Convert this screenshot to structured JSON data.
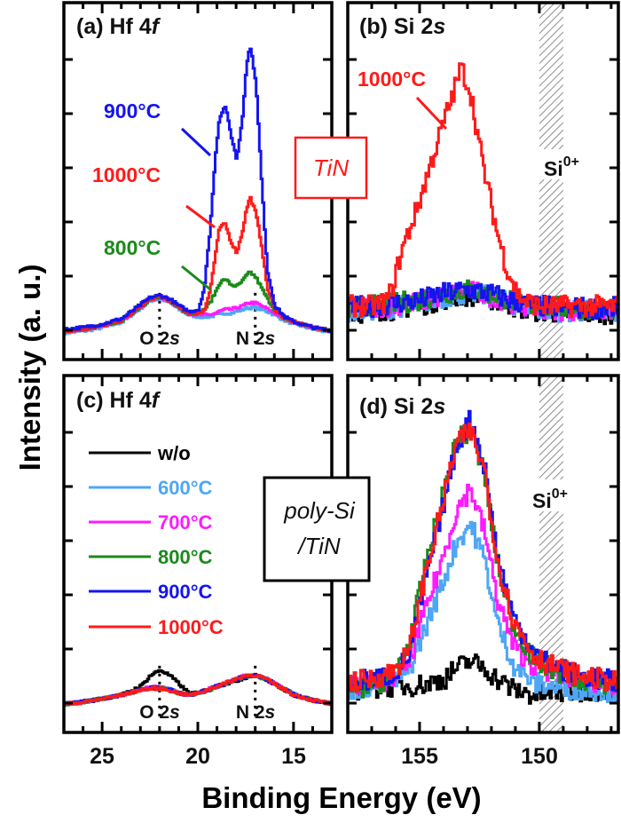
{
  "colors": {
    "w/o": "#000000",
    "600": "#4ea6f5",
    "700": "#ff1aff",
    "800": "#1a8a1a",
    "900": "#1414f0",
    "1000": "#ff1a1a",
    "hatch": "#8c8c8c"
  },
  "chart_data": {
    "type": "line",
    "xlabel": "Binding Energy (eV)",
    "ylabel": "Intensity (a. u.)",
    "legend": {
      "placement": "panel (c) upper-left",
      "entries": [
        {
          "label": "w/o",
          "color": "#000000"
        },
        {
          "label": "600°C",
          "color": "#4ea6f5"
        },
        {
          "label": "700°C",
          "color": "#ff1aff"
        },
        {
          "label": "800°C",
          "color": "#1a8a1a"
        },
        {
          "label": "900°C",
          "color": "#1414f0"
        },
        {
          "label": "1000°C",
          "color": "#ff1a1a"
        }
      ]
    },
    "panels": [
      {
        "id": "a",
        "label_prefix": "(a) Hf 4",
        "label_italic": "f",
        "xlim": [
          27,
          13
        ],
        "xticks": [
          25,
          20,
          15
        ],
        "ylim": [
          0,
          10
        ],
        "x_reversed": true,
        "peak_labels": [
          {
            "prefix": "O 2",
            "italic": "s",
            "x": 22
          },
          {
            "prefix": "N 2",
            "italic": "s",
            "x": 17
          }
        ],
        "annotations": [
          {
            "text": "900°C",
            "color": "#1414f0"
          },
          {
            "text": "1000°C",
            "color": "#ff1a1a"
          },
          {
            "text": "800°C",
            "color": "#1a8a1a"
          }
        ],
        "sample_label": "TiN",
        "x": [
          27,
          26,
          25,
          24,
          23.5,
          23,
          22.5,
          22,
          21.5,
          21,
          20.5,
          20,
          19.7,
          19.4,
          19.1,
          18.9,
          18.6,
          18.3,
          18,
          17.7,
          17.5,
          17.3,
          17,
          16.7,
          16.4,
          16,
          15.5,
          15,
          14,
          13
        ],
        "series": [
          {
            "name": "600°C",
            "color": "#4ea6f5",
            "y": [
              0.75,
              0.8,
              0.9,
              1.05,
              1.25,
              1.45,
              1.65,
              1.7,
              1.6,
              1.4,
              1.25,
              1.2,
              1.2,
              1.2,
              1.25,
              1.25,
              1.3,
              1.3,
              1.35,
              1.4,
              1.45,
              1.45,
              1.45,
              1.4,
              1.35,
              1.25,
              1.1,
              1.0,
              0.85,
              0.75
            ]
          },
          {
            "name": "700°C",
            "color": "#ff1aff",
            "y": [
              0.8,
              0.85,
              0.95,
              1.1,
              1.3,
              1.5,
              1.7,
              1.75,
              1.65,
              1.45,
              1.3,
              1.25,
              1.25,
              1.25,
              1.3,
              1.35,
              1.4,
              1.4,
              1.45,
              1.5,
              1.55,
              1.6,
              1.58,
              1.5,
              1.42,
              1.3,
              1.15,
              1.05,
              0.9,
              0.8
            ]
          },
          {
            "name": "800°C",
            "color": "#1a8a1a",
            "y": [
              0.8,
              0.85,
              0.95,
              1.1,
              1.3,
              1.5,
              1.7,
              1.75,
              1.65,
              1.45,
              1.3,
              1.3,
              1.4,
              1.6,
              1.9,
              2.15,
              2.25,
              2.1,
              2.05,
              2.2,
              2.35,
              2.45,
              2.3,
              2.0,
              1.7,
              1.4,
              1.15,
              1.05,
              0.9,
              0.8
            ]
          },
          {
            "name": "1000°C",
            "color": "#ff1a1a",
            "y": [
              0.8,
              0.85,
              0.95,
              1.1,
              1.3,
              1.5,
              1.7,
              1.75,
              1.65,
              1.45,
              1.3,
              1.3,
              1.4,
              1.9,
              3.0,
              3.7,
              3.8,
              3.3,
              3.0,
              3.6,
              4.2,
              4.55,
              4.1,
              3.2,
              2.0,
              1.4,
              1.15,
              1.05,
              0.9,
              0.8
            ]
          },
          {
            "name": "900°C",
            "color": "#1414f0",
            "y": [
              0.85,
              0.9,
              1.0,
              1.15,
              1.35,
              1.55,
              1.75,
              1.8,
              1.7,
              1.5,
              1.35,
              1.4,
              2.0,
              3.6,
              5.8,
              6.8,
              7.1,
              6.3,
              5.6,
              6.8,
              8.2,
              8.8,
              7.8,
              5.0,
              2.5,
              1.5,
              1.2,
              1.05,
              0.9,
              0.8
            ]
          }
        ]
      },
      {
        "id": "b",
        "label_prefix": "(b) Si 2",
        "label_italic": "s",
        "xlim": [
          158,
          146.7
        ],
        "xticks": [
          155,
          150
        ],
        "ylim": [
          0,
          10
        ],
        "x_reversed": true,
        "shaded_region": {
          "label": "Si",
          "sup": "0+",
          "x": [
            150,
            149
          ]
        },
        "annotations": [
          {
            "text": "1000°C",
            "color": "#ff1a1a"
          }
        ],
        "x": [
          158,
          157,
          156.5,
          156.2,
          155.8,
          155.1,
          154.6,
          154,
          153.6,
          153.3,
          152.9,
          152.4,
          151.8,
          151.4,
          150.9,
          150.5,
          150,
          149,
          148,
          146.7
        ],
        "series": [
          {
            "name": "w/o",
            "color": "#000000",
            "y": [
              1.3,
              1.35,
              1.4,
              1.4,
              1.45,
              1.5,
              1.6,
              1.7,
              1.75,
              1.8,
              1.8,
              1.75,
              1.65,
              1.55,
              1.45,
              1.4,
              1.35,
              1.3,
              1.3,
              1.3
            ]
          },
          {
            "name": "600°C",
            "color": "#4ea6f5",
            "y": [
              1.35,
              1.4,
              1.45,
              1.45,
              1.5,
              1.55,
              1.65,
              1.75,
              1.8,
              1.85,
              1.85,
              1.8,
              1.7,
              1.6,
              1.5,
              1.45,
              1.4,
              1.35,
              1.35,
              1.35
            ]
          },
          {
            "name": "700°C",
            "color": "#ff1aff",
            "y": [
              1.4,
              1.45,
              1.5,
              1.5,
              1.55,
              1.6,
              1.7,
              1.8,
              1.85,
              1.9,
              1.9,
              1.85,
              1.75,
              1.65,
              1.55,
              1.5,
              1.45,
              1.4,
              1.4,
              1.4
            ]
          },
          {
            "name": "800°C",
            "color": "#1a8a1a",
            "y": [
              1.45,
              1.5,
              1.55,
              1.55,
              1.6,
              1.65,
              1.75,
              1.85,
              1.9,
              1.95,
              1.95,
              1.9,
              1.8,
              1.7,
              1.6,
              1.55,
              1.5,
              1.45,
              1.45,
              1.45
            ]
          },
          {
            "name": "900°C",
            "color": "#1414f0",
            "y": [
              1.45,
              1.5,
              1.55,
              1.55,
              1.6,
              1.65,
              1.75,
              1.85,
              1.9,
              1.95,
              1.95,
              1.9,
              1.8,
              1.7,
              1.6,
              1.55,
              1.5,
              1.45,
              1.45,
              1.45
            ]
          },
          {
            "name": "1000°C",
            "color": "#ff1a1a",
            "y": [
              1.5,
              1.5,
              1.6,
              1.9,
              3.0,
              4.3,
              5.4,
              6.7,
              7.5,
              8.2,
              7.5,
              5.5,
              3.6,
              2.6,
              1.8,
              1.6,
              1.5,
              1.5,
              1.5,
              1.5
            ]
          }
        ]
      },
      {
        "id": "c",
        "label_prefix": "(c) Hf 4",
        "label_italic": "f",
        "xlim": [
          27,
          13
        ],
        "xticks": [
          25,
          20,
          15
        ],
        "ylim": [
          0,
          10
        ],
        "x_reversed": true,
        "peak_labels": [
          {
            "prefix": "O 2",
            "italic": "s",
            "x": 22
          },
          {
            "prefix": "N 2",
            "italic": "s",
            "x": 17
          }
        ],
        "sample_label_lines": [
          "poly-Si",
          "/TiN"
        ],
        "x": [
          27,
          26,
          25,
          24,
          23,
          22.5,
          22,
          21.5,
          21,
          20.5,
          20,
          19,
          18,
          17.5,
          17,
          16.5,
          16,
          15,
          14,
          13
        ],
        "series": [
          {
            "name": "w/o",
            "color": "#000000",
            "y": [
              0.8,
              0.85,
              0.95,
              1.05,
              1.3,
              1.6,
              1.75,
              1.6,
              1.35,
              1.1,
              1.1,
              1.3,
              1.45,
              1.55,
              1.6,
              1.5,
              1.35,
              1.05,
              0.9,
              0.8
            ]
          },
          {
            "name": "600°C",
            "color": "#4ea6f5",
            "y": [
              0.8,
              0.85,
              0.95,
              1.05,
              1.2,
              1.25,
              1.25,
              1.2,
              1.1,
              1.05,
              1.1,
              1.3,
              1.5,
              1.6,
              1.62,
              1.52,
              1.37,
              1.07,
              0.9,
              0.8
            ]
          },
          {
            "name": "700°C",
            "color": "#ff1aff",
            "y": [
              0.8,
              0.85,
              0.95,
              1.05,
              1.2,
              1.27,
              1.27,
              1.2,
              1.1,
              1.05,
              1.1,
              1.3,
              1.5,
              1.6,
              1.6,
              1.5,
              1.35,
              1.05,
              0.9,
              0.8
            ]
          },
          {
            "name": "800°C",
            "color": "#1a8a1a",
            "y": [
              0.8,
              0.85,
              0.95,
              1.05,
              1.2,
              1.25,
              1.25,
              1.2,
              1.1,
              1.05,
              1.1,
              1.28,
              1.48,
              1.58,
              1.58,
              1.5,
              1.35,
              1.07,
              0.9,
              0.8
            ]
          },
          {
            "name": "900°C",
            "color": "#1414f0",
            "y": [
              0.82,
              0.87,
              0.95,
              1.05,
              1.2,
              1.25,
              1.25,
              1.2,
              1.1,
              1.05,
              1.1,
              1.3,
              1.5,
              1.6,
              1.6,
              1.5,
              1.35,
              1.05,
              0.9,
              0.8
            ]
          },
          {
            "name": "1000°C",
            "color": "#ff1a1a",
            "y": [
              0.8,
              0.85,
              0.95,
              1.05,
              1.2,
              1.23,
              1.23,
              1.18,
              1.1,
              1.05,
              1.1,
              1.3,
              1.5,
              1.6,
              1.6,
              1.5,
              1.35,
              1.05,
              0.9,
              0.8
            ]
          }
        ]
      },
      {
        "id": "d",
        "label_prefix": "(d) Si 2",
        "label_italic": "s",
        "xlim": [
          158,
          146.7
        ],
        "xticks": [
          155,
          150
        ],
        "ylim": [
          0,
          10
        ],
        "x_reversed": true,
        "shaded_region": {
          "label": "Si",
          "sup": "0+",
          "x": [
            150,
            149
          ]
        },
        "x": [
          158,
          157,
          156.2,
          155.5,
          154.8,
          154,
          153.5,
          152.9,
          152.3,
          151.8,
          151.1,
          150.3,
          149.6,
          148.4,
          147.5,
          146.7
        ],
        "series": [
          {
            "name": "w/o",
            "color": "#000000",
            "y": [
              1.2,
              1.25,
              1.3,
              1.3,
              1.35,
              1.5,
              1.8,
              2.0,
              1.8,
              1.5,
              1.2,
              1.05,
              1.1,
              1.15,
              1.2,
              1.2
            ]
          },
          {
            "name": "600°C",
            "color": "#4ea6f5",
            "y": [
              1.2,
              1.3,
              1.4,
              1.7,
              2.9,
              4.3,
              5.3,
              5.85,
              4.8,
              3.1,
              1.9,
              1.4,
              1.3,
              1.2,
              1.2,
              1.1
            ]
          },
          {
            "name": "700°C",
            "color": "#ff1aff",
            "y": [
              1.3,
              1.4,
              1.5,
              1.9,
              3.4,
              5.0,
              6.2,
              6.85,
              5.6,
              3.8,
              2.4,
              1.9,
              1.7,
              1.5,
              1.4,
              1.3
            ]
          },
          {
            "name": "800°C",
            "color": "#1a8a1a",
            "y": [
              1.2,
              1.3,
              1.6,
              2.4,
              4.6,
              6.8,
              8.2,
              8.4,
              7.2,
              4.8,
              3.0,
              2.1,
              1.8,
              1.5,
              1.4,
              1.3
            ]
          },
          {
            "name": "900°C",
            "color": "#1414f0",
            "y": [
              1.4,
              1.5,
              1.6,
              2.1,
              4.2,
              6.5,
              8.0,
              8.8,
              7.4,
              5.0,
              3.2,
              2.3,
              1.9,
              1.6,
              1.5,
              1.4
            ]
          },
          {
            "name": "1000°C",
            "color": "#ff1a1a",
            "y": [
              1.4,
              1.5,
              1.7,
              2.2,
              4.4,
              6.6,
              8.1,
              8.45,
              7.3,
              4.9,
              3.1,
              2.2,
              1.9,
              1.6,
              1.5,
              1.4
            ]
          }
        ]
      }
    ]
  }
}
